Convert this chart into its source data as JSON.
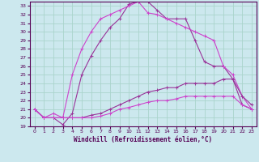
{
  "xlabel": "Windchill (Refroidissement éolien,°C)",
  "xlim": [
    -0.5,
    23.5
  ],
  "ylim": [
    19,
    33.5
  ],
  "yticks": [
    19,
    20,
    21,
    22,
    23,
    24,
    25,
    26,
    27,
    28,
    29,
    30,
    31,
    32,
    33
  ],
  "xticks": [
    0,
    1,
    2,
    3,
    4,
    5,
    6,
    7,
    8,
    9,
    10,
    11,
    12,
    13,
    14,
    15,
    16,
    17,
    18,
    19,
    20,
    21,
    22,
    23
  ],
  "bg_color": "#cce8ee",
  "grid_color": "#aad4cc",
  "line_color_dark": "#993399",
  "line_color_light": "#cc44cc",
  "curve1_x": [
    0,
    1,
    2,
    3,
    4,
    5,
    6,
    7,
    8,
    9,
    10,
    11,
    12,
    13,
    14,
    15,
    16,
    17,
    18,
    19,
    20,
    21,
    22,
    23
  ],
  "curve1_y": [
    21.0,
    20.0,
    20.0,
    19.2,
    20.5,
    25.0,
    27.2,
    29.0,
    30.5,
    31.5,
    33.2,
    33.5,
    33.5,
    32.5,
    31.5,
    31.5,
    31.5,
    29.0,
    26.5,
    26.0,
    26.0,
    24.5,
    21.5,
    21.0
  ],
  "curve2_x": [
    0,
    1,
    2,
    3,
    4,
    5,
    6,
    7,
    8,
    9,
    10,
    11,
    12,
    13,
    14,
    15,
    16,
    17,
    18,
    19,
    20,
    21,
    22,
    23
  ],
  "curve2_y": [
    21.0,
    20.0,
    20.5,
    20.0,
    25.0,
    28.0,
    30.0,
    31.5,
    32.0,
    32.5,
    33.0,
    33.5,
    32.2,
    32.0,
    31.5,
    31.0,
    30.5,
    30.0,
    29.5,
    29.0,
    26.0,
    25.0,
    22.5,
    21.0
  ],
  "curve3_x": [
    0,
    1,
    2,
    3,
    4,
    5,
    6,
    7,
    8,
    9,
    10,
    11,
    12,
    13,
    14,
    15,
    16,
    17,
    18,
    19,
    20,
    21,
    22,
    23
  ],
  "curve3_y": [
    21.0,
    20.0,
    20.0,
    20.0,
    20.0,
    20.0,
    20.3,
    20.5,
    21.0,
    21.5,
    22.0,
    22.5,
    23.0,
    23.2,
    23.5,
    23.5,
    24.0,
    24.0,
    24.0,
    24.0,
    24.5,
    24.5,
    22.5,
    21.5
  ],
  "curve4_x": [
    0,
    1,
    2,
    3,
    4,
    5,
    6,
    7,
    8,
    9,
    10,
    11,
    12,
    13,
    14,
    15,
    16,
    17,
    18,
    19,
    20,
    21,
    22,
    23
  ],
  "curve4_y": [
    21.0,
    20.0,
    20.0,
    20.0,
    20.0,
    20.0,
    20.0,
    20.2,
    20.5,
    21.0,
    21.2,
    21.5,
    21.8,
    22.0,
    22.0,
    22.2,
    22.5,
    22.5,
    22.5,
    22.5,
    22.5,
    22.5,
    21.5,
    21.0
  ]
}
